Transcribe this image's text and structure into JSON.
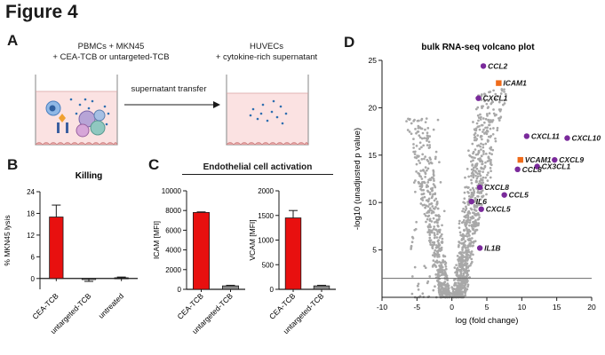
{
  "figure_title": "Figure 4",
  "panel_a": {
    "letter": "A",
    "left_label_line1": "PBMCs + MKN45",
    "left_label_line2": "+ CEA-TCB or untargeted-TCB",
    "right_label_line1": "HUVECs",
    "right_label_line2": "+ cytokine-rich supernatant",
    "arrow_label": "supernatant transfer"
  },
  "chart_data": [
    {
      "id": "B",
      "type": "bar",
      "title": "Killing",
      "ylabel": "% MKN45 lysis",
      "ylim": [
        -3,
        24
      ],
      "yticks": [
        0,
        6,
        12,
        18,
        24
      ],
      "categories": [
        "CEA-TCB",
        "untargeted-TCB",
        "untreated"
      ],
      "values": [
        17,
        -0.3,
        0.2
      ],
      "errors": [
        3.3,
        0.5,
        0.2
      ],
      "colors": [
        "#e8100f",
        "#8a8a8a",
        "#1a1a1a"
      ]
    },
    {
      "id": "C-ICAM",
      "type": "bar",
      "title": "Endothelial cell activation",
      "ylabel": "ICAM [MFI]",
      "ylim": [
        0,
        10000
      ],
      "yticks": [
        0,
        2000,
        4000,
        6000,
        8000,
        10000
      ],
      "categories": [
        "CEA-TCB",
        "untargeted-TCB"
      ],
      "values": [
        7800,
        350
      ],
      "errors": [
        60,
        60
      ],
      "colors": [
        "#e8100f",
        "#8a8a8a"
      ]
    },
    {
      "id": "C-VCAM",
      "type": "bar",
      "ylabel": "VCAM [MFI]",
      "ylim": [
        0,
        2000
      ],
      "yticks": [
        0,
        500,
        1000,
        1500,
        2000
      ],
      "categories": [
        "CEA-TCB",
        "untargeted-TCB"
      ],
      "values": [
        1450,
        70
      ],
      "errors": [
        150,
        12
      ],
      "colors": [
        "#e8100f",
        "#8a8a8a"
      ]
    },
    {
      "id": "D",
      "type": "scatter",
      "title": "bulk RNA-seq volcano plot",
      "xlabel": "log (fold change)",
      "ylabel": "-log10 (unadjusted p value)",
      "xlim": [
        -10,
        20
      ],
      "ylim": [
        0,
        25
      ],
      "xticks": [
        -10,
        -5,
        0,
        5,
        10,
        15,
        20
      ],
      "yticks": [
        5,
        10,
        15,
        20,
        25
      ],
      "threshold_y": 2,
      "background_color": "#a8a8a8",
      "highlighted": [
        {
          "gene": "CCL2",
          "x": 4.5,
          "y": 24.4,
          "shape": "circle",
          "color": "#7a2a9b"
        },
        {
          "gene": "ICAM1",
          "x": 6.7,
          "y": 22.6,
          "shape": "square",
          "color": "#ef6b1a"
        },
        {
          "gene": "CXCL1",
          "x": 3.8,
          "y": 21.0,
          "shape": "circle",
          "color": "#7a2a9b"
        },
        {
          "gene": "CXCL11",
          "x": 10.7,
          "y": 17.0,
          "shape": "circle",
          "color": "#7a2a9b"
        },
        {
          "gene": "CXCL10",
          "x": 16.5,
          "y": 16.8,
          "shape": "circle",
          "color": "#7a2a9b"
        },
        {
          "gene": "VCAM1",
          "x": 9.8,
          "y": 14.5,
          "shape": "square",
          "color": "#ef6b1a"
        },
        {
          "gene": "CXCL9",
          "x": 14.7,
          "y": 14.5,
          "shape": "circle",
          "color": "#7a2a9b"
        },
        {
          "gene": "CX3CL1",
          "x": 12.2,
          "y": 13.8,
          "shape": "circle",
          "color": "#7a2a9b"
        },
        {
          "gene": "CCL8",
          "x": 9.4,
          "y": 13.5,
          "shape": "circle",
          "color": "#7a2a9b"
        },
        {
          "gene": "CXCL8",
          "x": 4.0,
          "y": 11.6,
          "shape": "circle",
          "color": "#7a2a9b"
        },
        {
          "gene": "CCL5",
          "x": 7.5,
          "y": 10.8,
          "shape": "circle",
          "color": "#7a2a9b"
        },
        {
          "gene": "IL6",
          "x": 2.8,
          "y": 10.1,
          "shape": "circle",
          "color": "#7a2a9b"
        },
        {
          "gene": "CXCL5",
          "x": 4.2,
          "y": 9.3,
          "shape": "circle",
          "color": "#7a2a9b"
        },
        {
          "gene": "IL1B",
          "x": 4.0,
          "y": 5.2,
          "shape": "circle",
          "color": "#7a2a9b"
        }
      ]
    }
  ],
  "panel_b_letter": "B",
  "panel_c_letter": "C",
  "panel_d_letter": "D",
  "colors": {
    "red": "#e8100f",
    "grey": "#8a8a8a",
    "purple": "#7a2a9b",
    "orange": "#ef6b1a"
  }
}
